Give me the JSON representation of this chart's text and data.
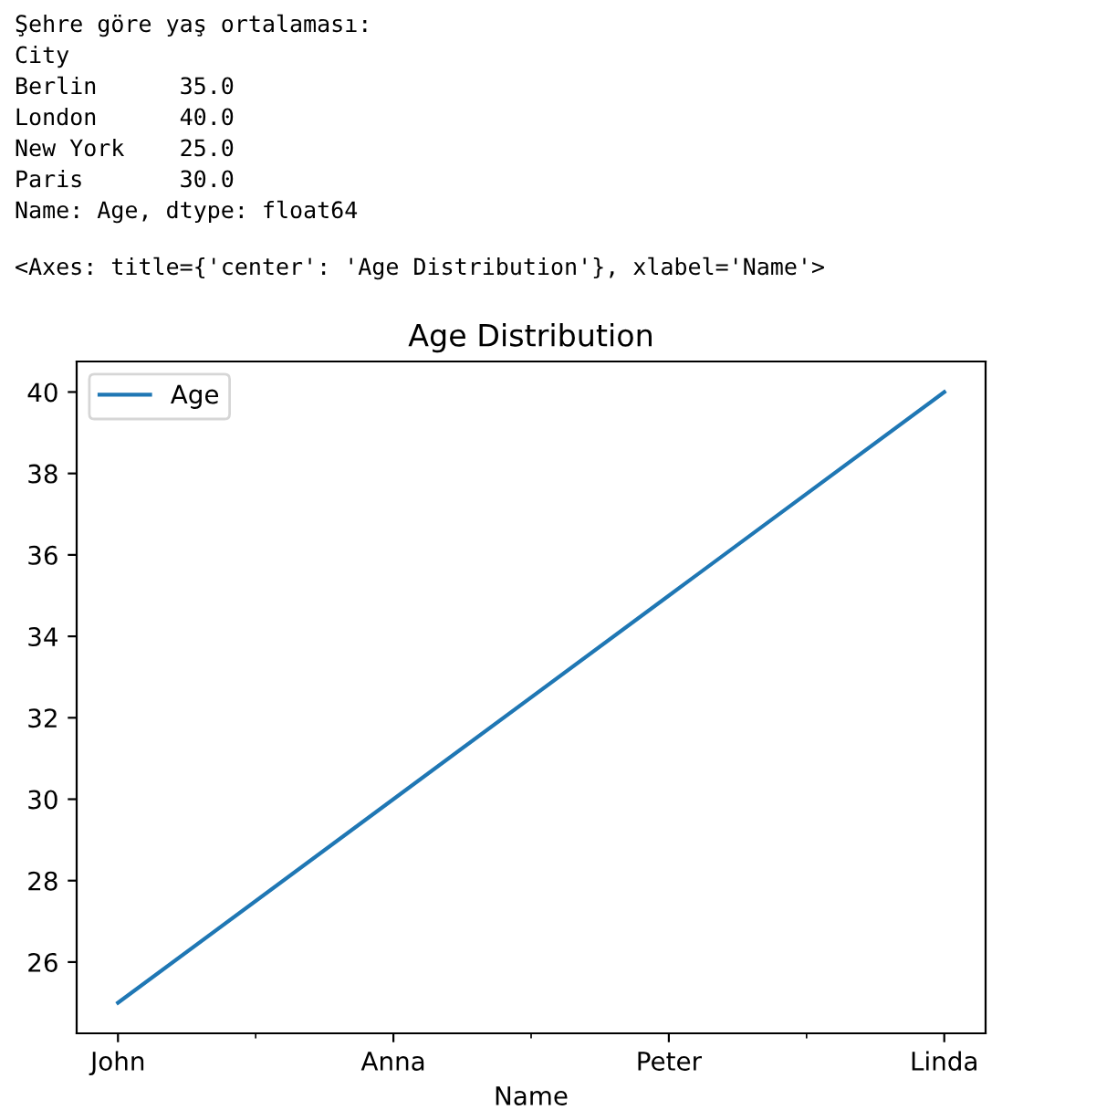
{
  "chart_data": {
    "type": "line",
    "title": "Age Distribution",
    "xlabel": "Name",
    "categories": [
      "John",
      "Anna",
      "Peter",
      "Linda"
    ],
    "series": [
      {
        "name": "Age",
        "color": "#1f77b4",
        "values": [
          25,
          30,
          35,
          40
        ]
      }
    ],
    "ylim": [
      24.25,
      40.75
    ],
    "yticks": [
      26,
      28,
      30,
      32,
      34,
      36,
      38,
      40
    ],
    "legend": "top left",
    "grid": false,
    "marker": "none",
    "line_style": "solid",
    "annotations": [
      "Şehre göre yaş ortalaması:",
      "City",
      "Berlin      35.0",
      "London      40.0",
      "New York    25.0",
      "Paris       30.0",
      "Name: Age, dtype: float64",
      "<Axes: title={'center': 'Age Distribution'}, xlabel='Name'>"
    ]
  }
}
